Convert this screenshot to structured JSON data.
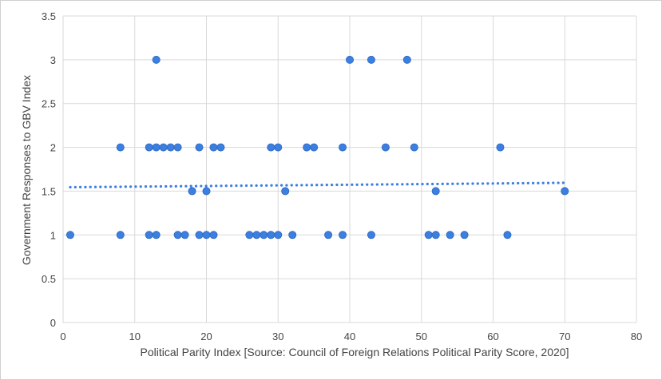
{
  "chart_data": {
    "type": "scatter",
    "xlabel": "Political Parity Index [Source: Council of Foreign Relations Political Parity Score, 2020]",
    "ylabel": "Government Responses to GBV Index",
    "xlim": [
      0,
      80
    ],
    "ylim": [
      0,
      3.5
    ],
    "x_ticks": [
      0,
      10,
      20,
      30,
      40,
      50,
      60,
      70,
      80
    ],
    "y_ticks": [
      0,
      0.5,
      1,
      1.5,
      2,
      2.5,
      3,
      3.5
    ],
    "grid": true,
    "legend": "none",
    "colors": {
      "point": "#3b7fe0",
      "point_stroke": "#2f68c0",
      "trendline": "#3b7fe0",
      "grid": "#d9d9d9"
    },
    "points": [
      {
        "x": 1,
        "y": 1
      },
      {
        "x": 8,
        "y": 2
      },
      {
        "x": 8,
        "y": 1
      },
      {
        "x": 12,
        "y": 2
      },
      {
        "x": 12,
        "y": 1
      },
      {
        "x": 13,
        "y": 3
      },
      {
        "x": 13,
        "y": 2
      },
      {
        "x": 13,
        "y": 1
      },
      {
        "x": 14,
        "y": 2
      },
      {
        "x": 15,
        "y": 2
      },
      {
        "x": 16,
        "y": 2
      },
      {
        "x": 16,
        "y": 1
      },
      {
        "x": 17,
        "y": 1
      },
      {
        "x": 18,
        "y": 1.5
      },
      {
        "x": 19,
        "y": 2
      },
      {
        "x": 19,
        "y": 1
      },
      {
        "x": 20,
        "y": 1.5
      },
      {
        "x": 20,
        "y": 1
      },
      {
        "x": 21,
        "y": 2
      },
      {
        "x": 21,
        "y": 1
      },
      {
        "x": 22,
        "y": 2
      },
      {
        "x": 26,
        "y": 1
      },
      {
        "x": 27,
        "y": 1
      },
      {
        "x": 28,
        "y": 1
      },
      {
        "x": 29,
        "y": 2
      },
      {
        "x": 29,
        "y": 1
      },
      {
        "x": 30,
        "y": 2
      },
      {
        "x": 30,
        "y": 1
      },
      {
        "x": 31,
        "y": 1.5
      },
      {
        "x": 32,
        "y": 1
      },
      {
        "x": 34,
        "y": 2
      },
      {
        "x": 35,
        "y": 2
      },
      {
        "x": 37,
        "y": 1
      },
      {
        "x": 39,
        "y": 2
      },
      {
        "x": 39,
        "y": 1
      },
      {
        "x": 40,
        "y": 3
      },
      {
        "x": 43,
        "y": 3
      },
      {
        "x": 43,
        "y": 1
      },
      {
        "x": 45,
        "y": 2
      },
      {
        "x": 48,
        "y": 3
      },
      {
        "x": 49,
        "y": 2
      },
      {
        "x": 51,
        "y": 1
      },
      {
        "x": 52,
        "y": 1.5
      },
      {
        "x": 52,
        "y": 1
      },
      {
        "x": 54,
        "y": 1
      },
      {
        "x": 56,
        "y": 1
      },
      {
        "x": 61,
        "y": 2
      },
      {
        "x": 62,
        "y": 1
      },
      {
        "x": 70,
        "y": 1.5
      }
    ],
    "trendline": {
      "type": "linear",
      "x": [
        1,
        70
      ],
      "y": [
        1.545,
        1.595
      ]
    }
  }
}
